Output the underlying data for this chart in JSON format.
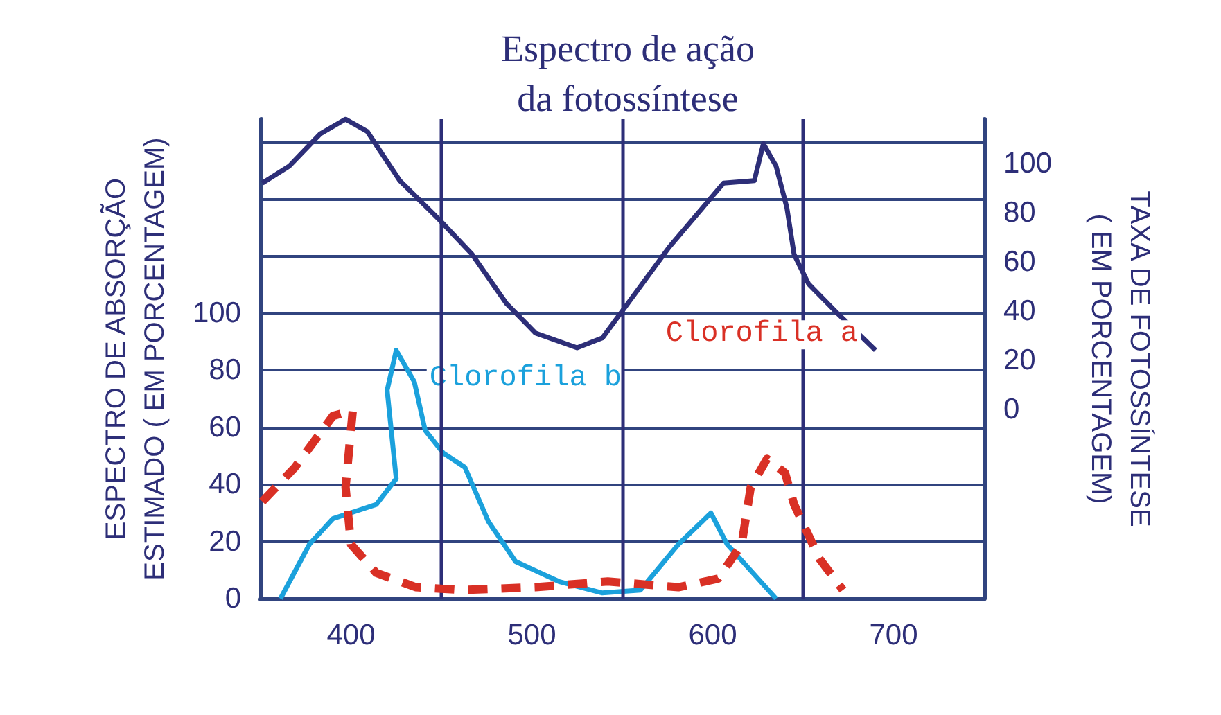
{
  "chart_data": {
    "type": "line",
    "title": "Espectro de ação\nda fotossíntese",
    "ylabel": "ESPECTRO DE ABSORÇÃO\nESTIMADO ( EM PORCENTAGEM)",
    "y2label": "TAXA DE FOTOSSÍNTESE\n( EM PORCENTAGEM)",
    "xlim": [
      350,
      750
    ],
    "xticks": [
      400,
      500,
      600,
      700
    ],
    "ylim": [
      0,
      168
    ],
    "yticks": [
      0,
      20,
      40,
      60,
      80,
      100,
      {
        "value": 120,
        "label": null
      },
      {
        "value": 140,
        "label": null
      },
      {
        "value": 160,
        "label": null
      }
    ],
    "y2lim": [
      -77,
      118
    ],
    "y2ticks": [
      0,
      20,
      40,
      60,
      80,
      100
    ],
    "grid": "y",
    "legend": false,
    "marker": "none",
    "ref_lines": [
      {
        "axis": "x",
        "value": 450,
        "color": "#2d2e78"
      },
      {
        "axis": "x",
        "value": 550,
        "color": "#2d2e78"
      },
      {
        "axis": "x",
        "value": 650,
        "color": "#2d2e78"
      }
    ],
    "series": [
      {
        "color": "#2d2e78",
        "axis": "y2",
        "line_style": "solid",
        "x": [
          351,
          366,
          383,
          397,
          409,
          427,
          449,
          467,
          486,
          502,
          525,
          539,
          552,
          576,
          606,
          623,
          628,
          635,
          641,
          645,
          653,
          669,
          690
        ],
        "values": [
          92,
          99,
          112,
          118,
          113,
          93,
          77,
          63,
          43,
          31,
          25,
          29,
          42,
          66,
          92,
          93,
          108,
          99,
          82,
          63,
          51,
          39,
          24
        ]
      },
      {
        "name": "Clorofila b",
        "color": "#1ba1dc",
        "line_style": "solid",
        "x": [
          361,
          377,
          390,
          414,
          425,
          420,
          425,
          435,
          441,
          451,
          463,
          476,
          491,
          515,
          539,
          560,
          581,
          599,
          608,
          635
        ],
        "values": [
          0,
          19,
          28,
          33,
          42,
          73,
          87,
          76,
          59,
          51,
          46,
          27,
          13,
          6,
          2,
          3,
          19,
          30,
          19,
          0
        ]
      },
      {
        "name": "Clorofila a",
        "color": "#d93025",
        "line_style": "dashed",
        "x": [
          351,
          369,
          390,
          401,
          397,
          400,
          414,
          436,
          462,
          502,
          542,
          581,
          603,
          616,
          621,
          630,
          640,
          645,
          659,
          672
        ],
        "values": [
          34,
          46,
          64,
          66,
          39,
          19,
          9,
          4,
          3,
          4,
          6,
          4,
          7,
          19,
          39,
          49,
          44,
          33,
          14,
          3
        ]
      }
    ]
  }
}
